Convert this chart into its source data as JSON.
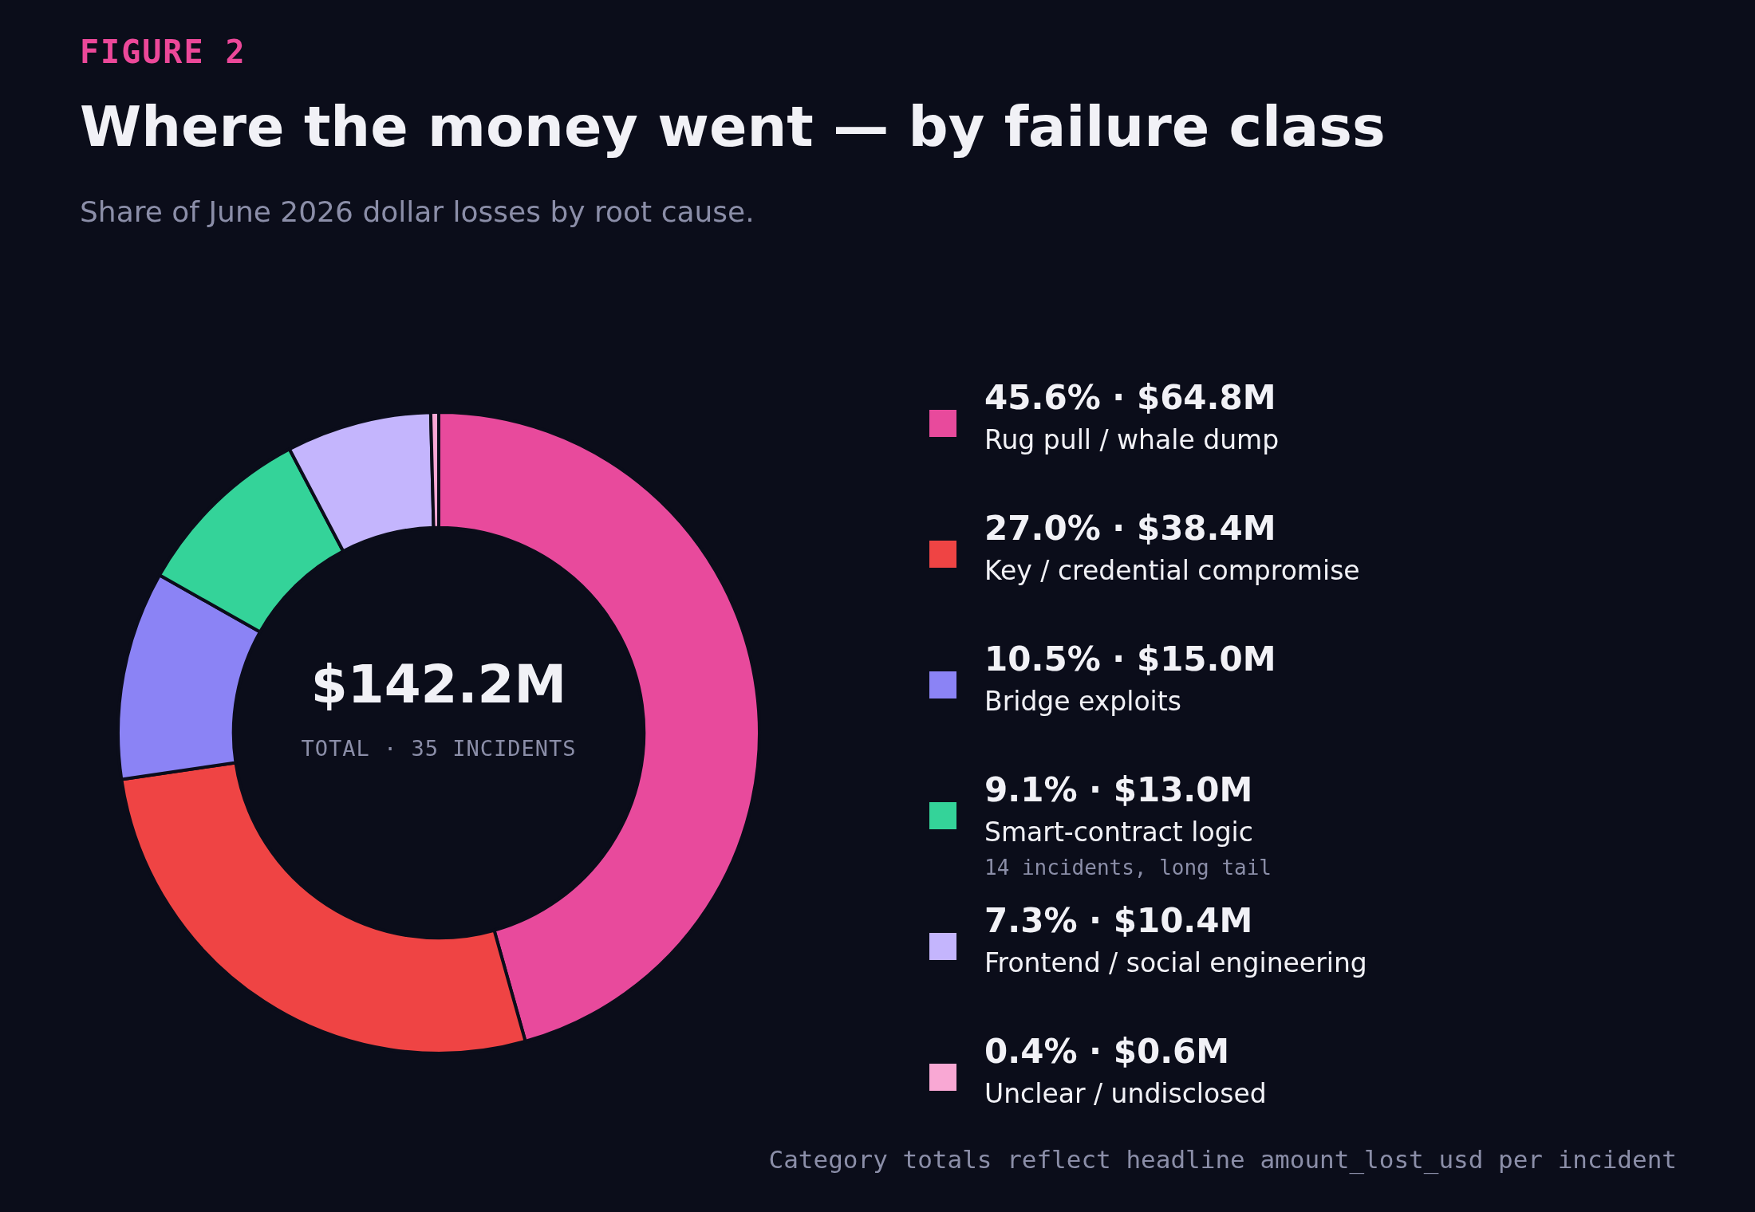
{
  "chart_data": {
    "type": "donut",
    "title": "Where the money went — by failure class",
    "subtitle": "Share of June 2026 dollar losses by root cause.",
    "legend_title": "FIGURE 2",
    "categories": [
      "Rug pull / whale dump",
      "Key / credential compromise",
      "Bridge exploits",
      "Smart-contract logic",
      "Frontend / social engineering",
      "Unclear / undisclosed"
    ],
    "values": [
      45.6,
      27.0,
      10.5,
      9.1,
      7.3,
      0.4
    ],
    "colors": [
      "#e84a9c",
      "#ef4444",
      "#8b83f5",
      "#34d399",
      "#c4b5fd",
      "#f9a8d4"
    ],
    "value_labels": [
      "45.6% · $64.8M",
      "27.0% · $38.4M",
      "10.5% · $15.0M",
      "9.1% · $13.0M",
      "7.3% · $10.4M",
      "0.4% · $0.6M"
    ],
    "legend": "right",
    "annotations": [
      "$142.2M",
      "TOTAL · 35 INCIDENTS",
      {
        "text": "14 incidents, long tail",
        "x": "Smart-contract logic"
      },
      "Category totals reflect headline amount_lost_usd per incident"
    ]
  }
}
